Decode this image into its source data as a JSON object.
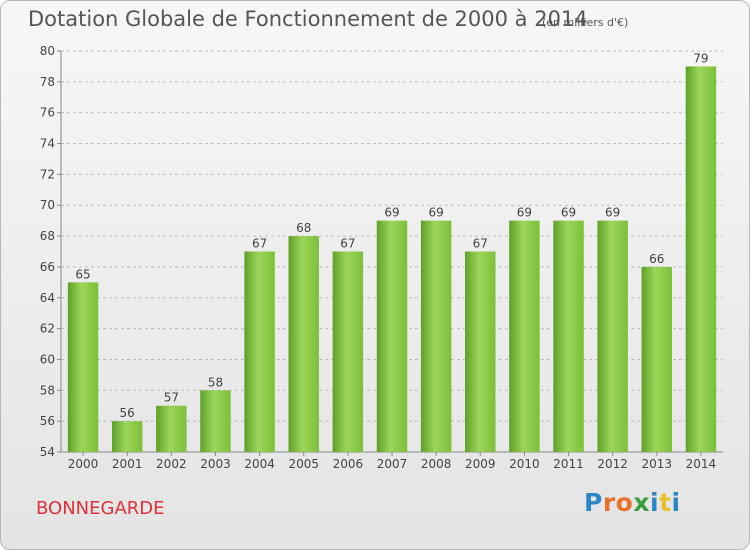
{
  "title": "Dotation Globale de Fonctionnement de 2000 à 2014",
  "unit_note": "(en milliers d'€)",
  "commune": "BONNEGARDE",
  "logo": {
    "text": "Proxiti",
    "letter_colors": [
      "#2c86c8",
      "#e8702a",
      "#e8702a",
      "#3c9c3c",
      "#2c86c8",
      "#e8c02a",
      "#2c86c8"
    ]
  },
  "colors": {
    "bar": "#7cc03a",
    "bar_dark": "#5fa028",
    "bar_light": "#9bd55a",
    "title": "#555555",
    "commune": "#e0303a"
  },
  "chart_data": {
    "type": "bar",
    "categories": [
      "2000",
      "2001",
      "2002",
      "2003",
      "2004",
      "2005",
      "2006",
      "2007",
      "2008",
      "2009",
      "2010",
      "2011",
      "2012",
      "2013",
      "2014"
    ],
    "values": [
      65,
      56,
      57,
      58,
      67,
      68,
      67,
      69,
      69,
      67,
      69,
      69,
      69,
      66,
      79
    ],
    "title": "Dotation Globale de Fonctionnement de 2000 à 2014",
    "ylim": [
      54,
      80
    ],
    "yticks": [
      54,
      56,
      58,
      60,
      62,
      64,
      66,
      68,
      70,
      72,
      74,
      76,
      78,
      80
    ],
    "grid": true,
    "legend": "none"
  }
}
